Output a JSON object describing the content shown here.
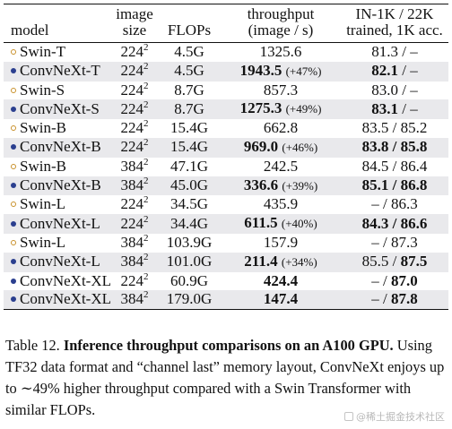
{
  "table": {
    "headers": {
      "model": "model",
      "size_line1": "image",
      "size_line2": "size",
      "flops": "FLOPs",
      "throughput_line1": "throughput",
      "throughput_line2": "(image / s)",
      "acc_line1": "IN-1K / 22K",
      "acc_line2": "trained, 1K acc."
    },
    "rows": [
      {
        "marker": "open",
        "model": "Swin-T",
        "size": "224",
        "size_exp": "2",
        "flops": "4.5G",
        "throughput": "1325.6",
        "throughput_bold": false,
        "gain": "",
        "acc_1k": "81.3",
        "acc_1k_bold": false,
        "acc_22k": "–",
        "acc_22k_bold": false
      },
      {
        "marker": "filled",
        "model": "ConvNeXt-T",
        "size": "224",
        "size_exp": "2",
        "flops": "4.5G",
        "throughput": "1943.5",
        "throughput_bold": true,
        "gain": "(+47%)",
        "acc_1k": "82.1",
        "acc_1k_bold": true,
        "acc_22k": "–",
        "acc_22k_bold": false
      },
      {
        "marker": "open",
        "model": "Swin-S",
        "size": "224",
        "size_exp": "2",
        "flops": "8.7G",
        "throughput": "857.3",
        "throughput_bold": false,
        "gain": "",
        "acc_1k": "83.0",
        "acc_1k_bold": false,
        "acc_22k": "–",
        "acc_22k_bold": false
      },
      {
        "marker": "filled",
        "model": "ConvNeXt-S",
        "size": "224",
        "size_exp": "2",
        "flops": "8.7G",
        "throughput": "1275.3",
        "throughput_bold": true,
        "gain": "(+49%)",
        "acc_1k": "83.1",
        "acc_1k_bold": true,
        "acc_22k": "–",
        "acc_22k_bold": false
      },
      {
        "marker": "open",
        "model": "Swin-B",
        "size": "224",
        "size_exp": "2",
        "flops": "15.4G",
        "throughput": "662.8",
        "throughput_bold": false,
        "gain": "",
        "acc_1k": "83.5",
        "acc_1k_bold": false,
        "acc_22k": "85.2",
        "acc_22k_bold": false
      },
      {
        "marker": "filled",
        "model": "ConvNeXt-B",
        "size": "224",
        "size_exp": "2",
        "flops": "15.4G",
        "throughput": "969.0",
        "throughput_bold": true,
        "gain": "(+46%)",
        "acc_1k": "83.8",
        "acc_1k_bold": true,
        "acc_22k": "85.8",
        "acc_22k_bold": true
      },
      {
        "marker": "open",
        "model": "Swin-B",
        "size": "384",
        "size_exp": "2",
        "flops": "47.1G",
        "throughput": "242.5",
        "throughput_bold": false,
        "gain": "",
        "acc_1k": "84.5",
        "acc_1k_bold": false,
        "acc_22k": "86.4",
        "acc_22k_bold": false
      },
      {
        "marker": "filled",
        "model": "ConvNeXt-B",
        "size": "384",
        "size_exp": "2",
        "flops": "45.0G",
        "throughput": "336.6",
        "throughput_bold": true,
        "gain": "(+39%)",
        "acc_1k": "85.1",
        "acc_1k_bold": true,
        "acc_22k": "86.8",
        "acc_22k_bold": true
      },
      {
        "marker": "open",
        "model": "Swin-L",
        "size": "224",
        "size_exp": "2",
        "flops": "34.5G",
        "throughput": "435.9",
        "throughput_bold": false,
        "gain": "",
        "acc_1k": "–",
        "acc_1k_bold": false,
        "acc_22k": "86.3",
        "acc_22k_bold": false
      },
      {
        "marker": "filled",
        "model": "ConvNeXt-L",
        "size": "224",
        "size_exp": "2",
        "flops": "34.4G",
        "throughput": "611.5",
        "throughput_bold": true,
        "gain": "(+40%)",
        "acc_1k": "84.3",
        "acc_1k_bold": true,
        "acc_22k": "86.6",
        "acc_22k_bold": true
      },
      {
        "marker": "open",
        "model": "Swin-L",
        "size": "384",
        "size_exp": "2",
        "flops": "103.9G",
        "throughput": "157.9",
        "throughput_bold": false,
        "gain": "",
        "acc_1k": "–",
        "acc_1k_bold": false,
        "acc_22k": "87.3",
        "acc_22k_bold": false
      },
      {
        "marker": "filled",
        "model": "ConvNeXt-L",
        "size": "384",
        "size_exp": "2",
        "flops": "101.0G",
        "throughput": "211.4",
        "throughput_bold": true,
        "gain": "(+34%)",
        "acc_1k": "85.5",
        "acc_1k_bold": false,
        "acc_22k": "87.5",
        "acc_22k_bold": true
      },
      {
        "marker": "filled",
        "model": "ConvNeXt-XL",
        "size": "224",
        "size_exp": "2",
        "flops": "60.9G",
        "throughput": "424.4",
        "throughput_bold": true,
        "gain": "",
        "acc_1k": "–",
        "acc_1k_bold": false,
        "acc_22k": "87.0",
        "acc_22k_bold": true
      },
      {
        "marker": "filled",
        "model": "ConvNeXt-XL",
        "size": "384",
        "size_exp": "2",
        "flops": "179.0G",
        "throughput": "147.4",
        "throughput_bold": true,
        "gain": "",
        "acc_1k": "–",
        "acc_1k_bold": false,
        "acc_22k": "87.8",
        "acc_22k_bold": true
      }
    ]
  },
  "caption": {
    "label": "Table 12.",
    "title": "Inference throughput comparisons on an A100 GPU.",
    "body": "Using TF32 data format and “channel last” memory layout, ConvNeXt enjoys up to ∼49% higher throughput compared with a Swin Transformer with similar FLOPs."
  },
  "watermark": {
    "icon": "watermark-logo-icon",
    "text": "@稀土掘金技术社区"
  },
  "colors": {
    "open_marker": "#c8902a",
    "filled_marker": "#2b3f8f",
    "alt_row": "#e9e9ec"
  }
}
